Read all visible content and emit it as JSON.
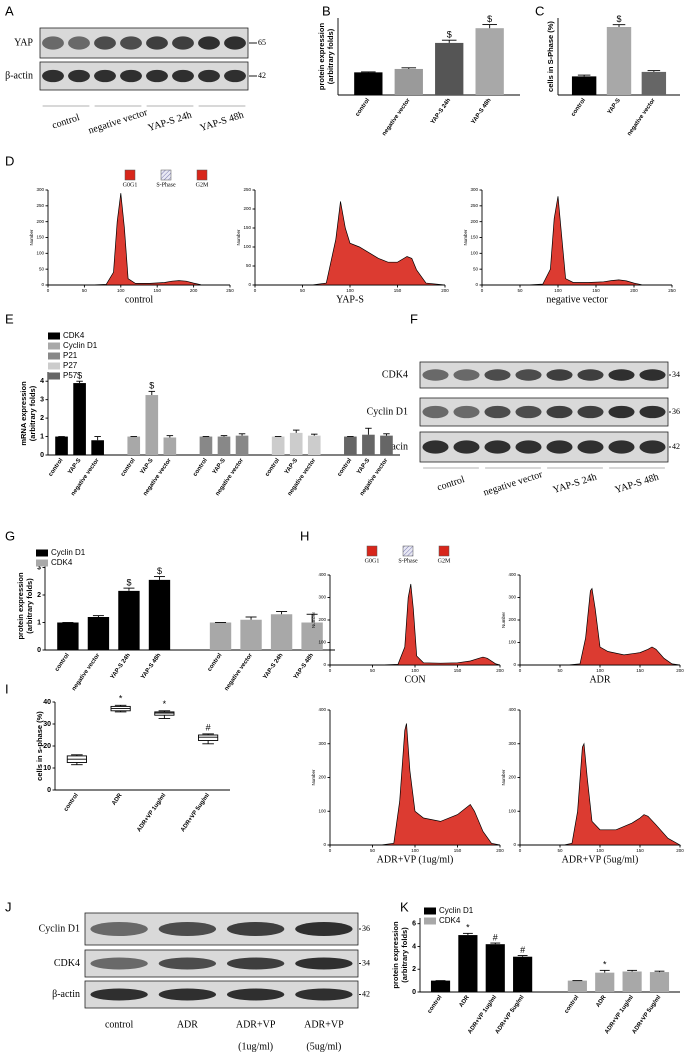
{
  "panel_labels": [
    "A",
    "B",
    "C",
    "D",
    "E",
    "F",
    "G",
    "H",
    "I",
    "J",
    "K"
  ],
  "cell_cycle_legend": [
    "G0G1",
    "S-Phase",
    "G2M"
  ],
  "blots": [
    {
      "rows": [
        {
          "label": "YAP",
          "marker": 65
        },
        {
          "label": "β-actin",
          "marker": 42
        }
      ],
      "lanes": [
        "control",
        "negative vector",
        "YAP-S 24h",
        "YAP-S 48h"
      ]
    },
    {
      "rows": [
        {
          "label": "CDK4",
          "marker": 34
        },
        {
          "label": "Cyclin D1",
          "marker": 36
        },
        {
          "label": "β-acin",
          "marker": 42
        }
      ],
      "lanes": [
        "control",
        "negative vector",
        "YAP-S 24h",
        "YAP-S 48h"
      ]
    },
    {
      "rows": [
        {
          "label": "Cyclin D1",
          "marker": 36
        },
        {
          "label": "CDK4",
          "marker": 34
        },
        {
          "label": "β-actin",
          "marker": 42
        }
      ],
      "lanes": [
        [
          "control"
        ],
        [
          "ADR"
        ],
        [
          "ADR+VP",
          "(1ug/ml)"
        ],
        [
          "ADR+VP",
          "(5ug/ml)"
        ]
      ]
    }
  ],
  "chart_data": [
    {
      "type": "bar",
      "ylabel": [
        "protein expression",
        "(arbitrary folds)"
      ],
      "categories": [
        "control",
        "negative vector",
        "YAP-S 24h",
        "YAP-S 48h"
      ],
      "values": [
        1,
        1.15,
        2.3,
        2.95
      ],
      "errors": [
        0.02,
        0.05,
        0.12,
        0.16
      ],
      "annotations": [
        null,
        null,
        "$",
        "$"
      ],
      "colors": [
        "#000000",
        "#9a9a9a",
        "#555555",
        "#a8a8a8"
      ],
      "ylim": [
        0,
        3.4
      ]
    },
    {
      "type": "bar",
      "ylabel": [
        "cells in S-Phase  (%)"
      ],
      "categories": [
        "control",
        "YAP-S",
        "negative vector"
      ],
      "values": [
        14.5,
        53,
        18
      ],
      "errors": [
        1,
        1.8,
        1
      ],
      "annotations": [
        null,
        "$",
        null
      ],
      "colors": [
        "#000000",
        "#a8a8a8",
        "#666666"
      ],
      "ylim": [
        0,
        60
      ]
    },
    {
      "type": "flow",
      "xlabel": "control",
      "ylabel": "Number",
      "color": "#d8261b",
      "xlim": [
        0,
        250
      ],
      "xticks": [
        0,
        50,
        100,
        150,
        200,
        250
      ],
      "ylim": [
        0,
        300
      ],
      "yticks": [
        0,
        50,
        100,
        150,
        200,
        250,
        300
      ],
      "x": [
        0,
        60,
        80,
        90,
        95,
        100,
        105,
        110,
        120,
        140,
        160,
        170,
        180,
        190,
        200,
        210,
        250
      ],
      "values": [
        0,
        0,
        2,
        40,
        200,
        290,
        180,
        20,
        5,
        5,
        8,
        12,
        14,
        12,
        6,
        1,
        0
      ]
    },
    {
      "type": "flow",
      "xlabel": "YAP-S",
      "ylabel": "Number",
      "color": "#d8261b",
      "xlim": [
        0,
        200
      ],
      "xticks": [
        0,
        50,
        100,
        150,
        200
      ],
      "ylim": [
        0,
        250
      ],
      "yticks": [
        0,
        50,
        100,
        150,
        200,
        250
      ],
      "x": [
        0,
        60,
        75,
        85,
        90,
        95,
        100,
        110,
        120,
        130,
        140,
        150,
        160,
        165,
        170,
        180,
        200
      ],
      "values": [
        0,
        0,
        5,
        120,
        220,
        150,
        110,
        100,
        85,
        70,
        60,
        60,
        75,
        70,
        40,
        5,
        0
      ]
    },
    {
      "type": "flow",
      "xlabel": "negative vector",
      "ylabel": "Number",
      "color": "#d8261b",
      "xlim": [
        0,
        250
      ],
      "xticks": [
        0,
        50,
        100,
        150,
        200,
        250
      ],
      "ylim": [
        0,
        300
      ],
      "yticks": [
        0,
        50,
        100,
        150,
        200,
        250,
        300
      ],
      "x": [
        0,
        60,
        80,
        90,
        95,
        100,
        105,
        110,
        120,
        140,
        160,
        170,
        180,
        190,
        200,
        210,
        250
      ],
      "values": [
        0,
        0,
        3,
        50,
        210,
        280,
        150,
        20,
        8,
        8,
        10,
        14,
        16,
        13,
        6,
        1,
        0
      ]
    },
    {
      "type": "bar",
      "ylabel": [
        "mRNA expression",
        "(arbitrary folds)"
      ],
      "categories": [
        "control",
        "YAP-S",
        "negative vector"
      ],
      "ylim": [
        0,
        4.5
      ],
      "yticks": [
        0,
        1,
        2,
        3,
        4
      ],
      "legend": "upper left",
      "series": [
        {
          "name": "CDK4",
          "color": "#000000",
          "values": [
            1,
            3.9,
            0.8
          ],
          "errors": [
            0,
            0.1,
            0.2
          ],
          "annotations": [
            null,
            "$",
            null
          ]
        },
        {
          "name": "Cyclin D1",
          "color": "#a8a8a8",
          "values": [
            1,
            3.25,
            0.95
          ],
          "errors": [
            0,
            0.2,
            0.1
          ],
          "annotations": [
            null,
            "$",
            null
          ]
        },
        {
          "name": "P21",
          "color": "#888888",
          "values": [
            1,
            1.0,
            1.05
          ],
          "errors": [
            0,
            0.05,
            0.1
          ],
          "annotations": [
            null,
            null,
            null
          ]
        },
        {
          "name": "P27",
          "color": "#cccccc",
          "values": [
            1,
            1.2,
            1.05
          ],
          "errors": [
            0,
            0.15,
            0.08
          ],
          "annotations": [
            null,
            null,
            null
          ]
        },
        {
          "name": "P57",
          "color": "#666666",
          "values": [
            1,
            1.1,
            1.05
          ],
          "errors": [
            0,
            0.35,
            0.1
          ],
          "annotations": [
            null,
            null,
            null
          ]
        }
      ]
    },
    {
      "type": "bar",
      "ylabel": [
        "protein expression",
        "(arbitrary folds)"
      ],
      "categories": [
        "control",
        "negative vector",
        "YAP-S 24h",
        "YAP-S 48h"
      ],
      "ylim": [
        0,
        3.2
      ],
      "yticks": [
        0,
        1,
        2,
        3
      ],
      "legend": "upper left",
      "series": [
        {
          "name": "Cyclin D1",
          "color": "#000000",
          "values": [
            1,
            1.2,
            2.15,
            2.55
          ],
          "errors": [
            0,
            0.05,
            0.1,
            0.12
          ],
          "annotations": [
            null,
            null,
            "$",
            "$"
          ]
        },
        {
          "name": "CDK4",
          "color": "#a8a8a8",
          "values": [
            1,
            1.1,
            1.3,
            1.0
          ],
          "errors": [
            0,
            0.1,
            0.1,
            0.3
          ],
          "annotations": [
            null,
            null,
            null,
            null
          ]
        }
      ]
    },
    {
      "type": "flow",
      "xlabel": "CON",
      "ylabel": "Number",
      "color": "#d8261b",
      "xlim": [
        0,
        200
      ],
      "xticks": [
        0,
        50,
        100,
        150,
        200
      ],
      "ylim": [
        0,
        400
      ],
      "yticks": [
        0,
        100,
        200,
        300,
        400
      ],
      "x": [
        0,
        60,
        80,
        88,
        92,
        95,
        98,
        102,
        110,
        130,
        150,
        165,
        175,
        180,
        185,
        195,
        200
      ],
      "values": [
        0,
        0,
        3,
        80,
        300,
        360,
        250,
        40,
        10,
        8,
        10,
        18,
        30,
        35,
        30,
        5,
        0
      ]
    },
    {
      "type": "flow",
      "xlabel": "ADR",
      "ylabel": "Number",
      "color": "#d8261b",
      "xlim": [
        0,
        200
      ],
      "xticks": [
        0,
        50,
        100,
        150,
        200
      ],
      "ylim": [
        0,
        400
      ],
      "yticks": [
        0,
        100,
        200,
        300,
        400
      ],
      "x": [
        0,
        60,
        75,
        82,
        88,
        90,
        94,
        100,
        110,
        130,
        150,
        160,
        165,
        170,
        180,
        190,
        200
      ],
      "values": [
        0,
        0,
        5,
        120,
        330,
        340,
        250,
        80,
        60,
        45,
        55,
        70,
        80,
        70,
        30,
        5,
        0
      ]
    },
    {
      "type": "flow",
      "xlabel": "ADR+VP (1ug/ml)",
      "ylabel": "Number",
      "color": "#d8261b",
      "xlim": [
        0,
        200
      ],
      "xticks": [
        0,
        50,
        100,
        150,
        200
      ],
      "ylim": [
        0,
        400
      ],
      "yticks": [
        0,
        100,
        200,
        300,
        400
      ],
      "x": [
        0,
        60,
        75,
        82,
        88,
        90,
        94,
        100,
        110,
        130,
        150,
        160,
        165,
        170,
        180,
        190,
        200
      ],
      "values": [
        0,
        0,
        5,
        130,
        340,
        360,
        220,
        100,
        80,
        70,
        90,
        110,
        120,
        100,
        40,
        5,
        0
      ]
    },
    {
      "type": "flow",
      "xlabel": "ADR+VP (5ug/ml)",
      "ylabel": "Number",
      "color": "#d8261b",
      "xlim": [
        0,
        200
      ],
      "xticks": [
        0,
        50,
        100,
        150,
        200
      ],
      "ylim": [
        0,
        400
      ],
      "yticks": [
        0,
        100,
        200,
        300,
        400
      ],
      "x": [
        0,
        55,
        65,
        72,
        78,
        80,
        84,
        90,
        100,
        120,
        140,
        150,
        155,
        160,
        170,
        185,
        200
      ],
      "values": [
        0,
        0,
        5,
        100,
        290,
        300,
        200,
        70,
        45,
        45,
        65,
        80,
        90,
        85,
        60,
        20,
        0
      ]
    },
    {
      "type": "box",
      "ylabel": [
        "cells in s-phase (%)"
      ],
      "categories": [
        "control",
        "ADR",
        "ADR+VP 1ug/ml",
        "ADR+VP 5ug/ml"
      ],
      "stats": [
        [
          11.5,
          12.5,
          14,
          15.5,
          16
        ],
        [
          35.5,
          36,
          37,
          38,
          38.5
        ],
        [
          32.5,
          34,
          35,
          35.5,
          36
        ],
        [
          21,
          22.5,
          24,
          25,
          25.5
        ]
      ],
      "annotations": [
        null,
        "*",
        "*",
        "#"
      ],
      "ylim": [
        0,
        40
      ],
      "yticks": [
        0,
        10,
        20,
        30,
        40
      ]
    },
    {
      "type": "bar",
      "ylabel": [
        "protein expression",
        "(arbitrary folds)"
      ],
      "categories": [
        "control",
        "ADR",
        "ADR+VP 1ug/ml",
        "ADR+VP 5ug/ml"
      ],
      "ylim": [
        0,
        6.5
      ],
      "yticks": [
        0,
        2,
        4,
        6
      ],
      "legend": "upper left",
      "series": [
        {
          "name": "Cyclin D1",
          "color": "#000000",
          "values": [
            1,
            5.0,
            4.2,
            3.1
          ],
          "errors": [
            0,
            0.15,
            0.1,
            0.1
          ],
          "annotations": [
            null,
            "*",
            "#",
            "#"
          ]
        },
        {
          "name": "CDK4",
          "color": "#a8a8a8",
          "values": [
            1,
            1.7,
            1.8,
            1.75
          ],
          "errors": [
            0,
            0.2,
            0.1,
            0.08
          ],
          "annotations": [
            null,
            "*",
            null,
            null
          ]
        }
      ]
    }
  ]
}
